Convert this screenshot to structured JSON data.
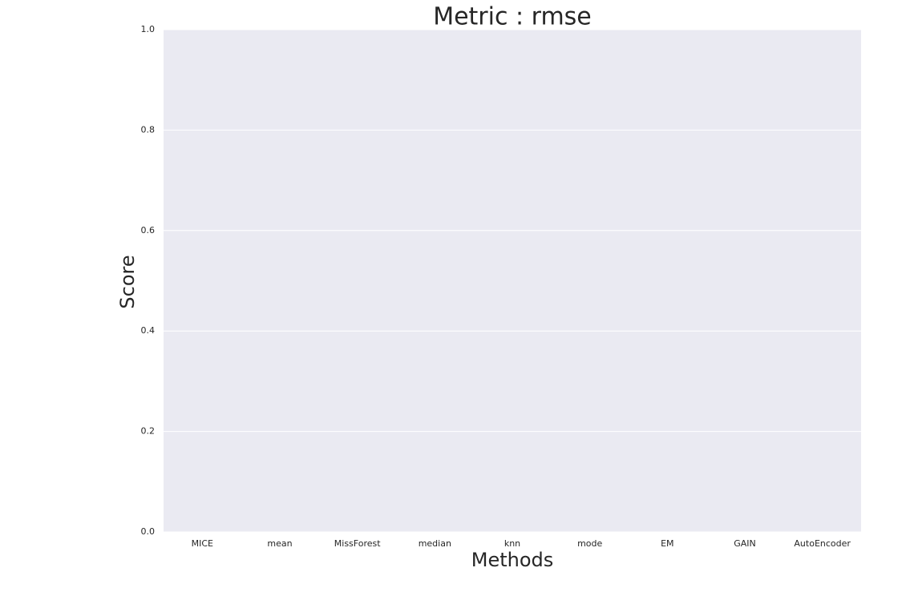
{
  "chart_data": {
    "type": "bar",
    "title": "Metric : rmse",
    "x_label": "Methods",
    "y_label": "Score",
    "categories": [
      "MICE",
      "mean",
      "MissForest",
      "median",
      "knn",
      "mode",
      "EM",
      "GAIN",
      "AutoEncoder"
    ],
    "ylim": [
      0,
      1
    ],
    "yticks": [
      {
        "value": 0,
        "label": "0.0"
      },
      {
        "value": 0.2,
        "label": "0.2"
      },
      {
        "value": 0.4,
        "label": "0.4"
      },
      {
        "value": 0.6,
        "label": "0.6"
      },
      {
        "value": 0.8,
        "label": "0.8"
      },
      {
        "value": 1,
        "label": "1.0"
      }
    ],
    "grid": true
  }
}
